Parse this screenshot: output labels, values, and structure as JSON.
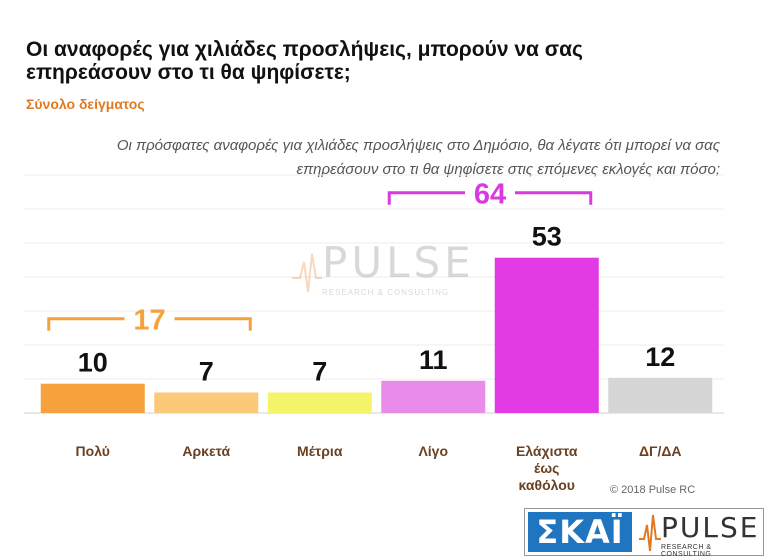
{
  "title": "Οι αναφορές για χιλιάδες προσλήψεις, μπορούν να σας επηρεάσουν στο τι θα ψηφίσετε;",
  "subtitle": "Σύνολο δείγματος",
  "question": "Οι πρόσφατες αναφορές για χιλιάδες προσλήψεις στο Δημόσιο, θα λέγατε ότι μπορεί να σας επηρεάσουν στο τι θα ψηφίσετε στις επόμενες εκλογές και πόσο;",
  "copyright": "© 2018 Pulse RC",
  "watermark": {
    "word": "PULSE",
    "sub": "RESEARCH & CONSULTING"
  },
  "logos": {
    "skai": "ΣΚΑΪ",
    "pulse_word": "PULSE",
    "pulse_sub": "RESEARCH & CONSULTING"
  },
  "chart_data": {
    "type": "bar",
    "categories": [
      "Πολύ",
      "Αρκετά",
      "Μέτρια",
      "Λίγο",
      "Ελάχιστα έως καθόλου",
      "ΔΓ/ΔΑ"
    ],
    "category_lines": [
      [
        "Πολύ"
      ],
      [
        "Αρκετά"
      ],
      [
        "Μέτρια"
      ],
      [
        "Λίγο"
      ],
      [
        "Ελάχιστα",
        "έως",
        "καθόλου"
      ],
      [
        "ΔΓ/ΔΑ"
      ]
    ],
    "values": [
      10,
      7,
      7,
      11,
      53,
      12
    ],
    "colors": [
      "#f6a13c",
      "#fcc97a",
      "#f4f46a",
      "#e98be9",
      "#e23ae4",
      "#d6d6d6"
    ],
    "ylim": [
      0,
      100
    ],
    "grid": true,
    "groups": [
      {
        "label": "17",
        "from": 0,
        "to": 1,
        "color": "#f6a13c"
      },
      {
        "label": "64",
        "from": 3,
        "to": 4,
        "color": "#d93ae0"
      }
    ]
  }
}
